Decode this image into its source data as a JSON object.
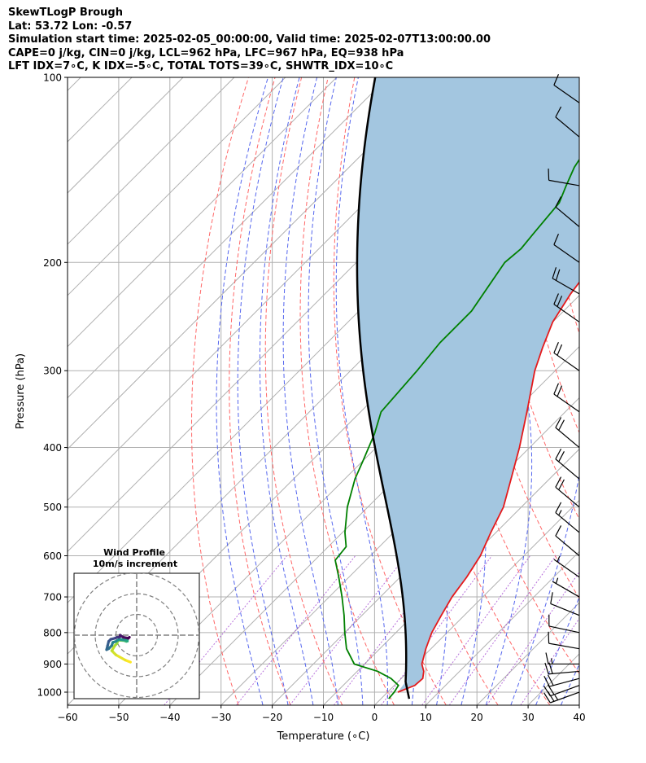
{
  "header": {
    "line1": "SkewTLogP Brough",
    "line2": "Lat: 53.72   Lon: -0.57",
    "line3": "Simulation start time: 2025-02-05_00:00:00, Valid time: 2025-02-07T13:00:00.00",
    "line4": "CAPE=0 j/kg, CIN=0 j/kg, LCL=962 hPa, LFC=967 hPa, EQ=938 hPa",
    "line5": "LFT IDX=7∘C, K IDX=-5∘C, TOTAL TOTS=39∘C, SHWTR_IDX=10∘C"
  },
  "chart_data": {
    "type": "line",
    "xlabel": "Temperature (∘C)",
    "ylabel": "Pressure (hPa)",
    "xlim": [
      -60,
      40
    ],
    "ylim": [
      1050,
      100
    ],
    "y_scale": "log",
    "grid": true,
    "x_ticks": [
      -60,
      -50,
      -40,
      -30,
      -20,
      -10,
      0,
      10,
      20,
      30,
      40
    ],
    "x_tick_labels": [
      "−60",
      "−50",
      "−40",
      "−30",
      "−20",
      "−10",
      "0",
      "10",
      "20",
      "30",
      "40"
    ],
    "y_ticks": [
      100,
      200,
      300,
      400,
      500,
      600,
      700,
      800,
      900,
      1000
    ],
    "y_tick_labels": [
      "100",
      "200",
      "300",
      "400",
      "500",
      "600",
      "700",
      "800",
      "900",
      "1000"
    ],
    "skew_degrees": 45,
    "series": [
      {
        "role": "temperature",
        "color": "#e41a1c",
        "points": [
          [
            1000,
            2.0
          ],
          [
            975,
            4.0
          ],
          [
            950,
            4.2
          ],
          [
            925,
            3.0
          ],
          [
            900,
            1.2
          ],
          [
            850,
            -1.0
          ],
          [
            800,
            -3.0
          ],
          [
            750,
            -4.5
          ],
          [
            700,
            -6.0
          ],
          [
            650,
            -7.0
          ],
          [
            600,
            -8.5
          ],
          [
            550,
            -11.0
          ],
          [
            500,
            -13.5
          ],
          [
            450,
            -17.5
          ],
          [
            400,
            -22.0
          ],
          [
            350,
            -27.5
          ],
          [
            300,
            -34.0
          ],
          [
            275,
            -37.0
          ],
          [
            250,
            -40.0
          ],
          [
            225,
            -42.0
          ],
          [
            200,
            -43.5
          ],
          [
            190,
            -43.8
          ],
          [
            175,
            -43.5
          ],
          [
            160,
            -45.0
          ],
          [
            150,
            -45.5
          ],
          [
            140,
            -46.0
          ],
          [
            125,
            -46.5
          ],
          [
            110,
            -46.0
          ],
          [
            100,
            -47.0
          ]
        ]
      },
      {
        "role": "dewpoint",
        "color": "#008000",
        "points": [
          [
            1025,
            1.5
          ],
          [
            1000,
            1.3
          ],
          [
            975,
            0.8
          ],
          [
            950,
            -2.0
          ],
          [
            925,
            -6.0
          ],
          [
            900,
            -12.0
          ],
          [
            850,
            -16.5
          ],
          [
            800,
            -20.0
          ],
          [
            750,
            -23.5
          ],
          [
            700,
            -27.5
          ],
          [
            650,
            -32.0
          ],
          [
            610,
            -36.0
          ],
          [
            580,
            -36.5
          ],
          [
            550,
            -39.5
          ],
          [
            500,
            -44.0
          ],
          [
            450,
            -48.0
          ],
          [
            420,
            -50.0
          ],
          [
            380,
            -53.0
          ],
          [
            350,
            -56.0
          ],
          [
            300,
            -57.0
          ],
          [
            270,
            -58.0
          ],
          [
            240,
            -58.0
          ],
          [
            200,
            -61.0
          ],
          [
            190,
            -60.5
          ],
          [
            180,
            -61.0
          ],
          [
            160,
            -62.0
          ],
          [
            150,
            -64.0
          ],
          [
            140,
            -66.0
          ],
          [
            125,
            -68.0
          ],
          [
            110,
            -70.0
          ],
          [
            100,
            -72.0
          ]
        ]
      },
      {
        "role": "parcel",
        "color": "#000000",
        "surface": {
          "pressure": 1025,
          "temperature": 5.5
        },
        "lcl": {
          "pressure": 962,
          "temperature": 1.5
        }
      }
    ],
    "shading": {
      "between": [
        "temperature",
        "parcel"
      ],
      "color": "#a3c6e0"
    },
    "background_lines": {
      "dry_adiabats_color": "#ff6666",
      "moist_adiabats_color": "#5566ee",
      "mixing_ratio_color": "#9933cc",
      "isotherm_color": "#b0b0b0",
      "grid_color": "#b0b0b0"
    },
    "wind_barbs": {
      "color": "#000000",
      "units": "m/s",
      "levels": [
        {
          "pressure": 1000,
          "speed": 25,
          "dir": 250
        },
        {
          "pressure": 975,
          "speed": 22,
          "dir": 250
        },
        {
          "pressure": 950,
          "speed": 22,
          "dir": 255
        },
        {
          "pressure": 925,
          "speed": 20,
          "dir": 265
        },
        {
          "pressure": 900,
          "speed": 15,
          "dir": 270
        },
        {
          "pressure": 850,
          "speed": 12,
          "dir": 280
        },
        {
          "pressure": 800,
          "speed": 10,
          "dir": 282
        },
        {
          "pressure": 750,
          "speed": 8,
          "dir": 292
        },
        {
          "pressure": 700,
          "speed": 7,
          "dir": 300
        },
        {
          "pressure": 650,
          "speed": 7,
          "dir": 305
        },
        {
          "pressure": 600,
          "speed": 12,
          "dir": 310
        },
        {
          "pressure": 550,
          "speed": 15,
          "dir": 310
        },
        {
          "pressure": 500,
          "speed": 20,
          "dir": 310
        },
        {
          "pressure": 450,
          "speed": 20,
          "dir": 310
        },
        {
          "pressure": 400,
          "speed": 20,
          "dir": 310
        },
        {
          "pressure": 350,
          "speed": 20,
          "dir": 305
        },
        {
          "pressure": 300,
          "speed": 20,
          "dir": 305
        },
        {
          "pressure": 250,
          "speed": 20,
          "dir": 305
        },
        {
          "pressure": 225,
          "speed": 20,
          "dir": 300
        },
        {
          "pressure": 200,
          "speed": 12,
          "dir": 305
        },
        {
          "pressure": 175,
          "speed": 10,
          "dir": 310
        },
        {
          "pressure": 150,
          "speed": 10,
          "dir": 280
        },
        {
          "pressure": 125,
          "speed": 10,
          "dir": 310
        },
        {
          "pressure": 110,
          "speed": 10,
          "dir": 305
        }
      ]
    },
    "hodograph": {
      "title": "Wind Profile",
      "subtitle": "10m/s increment",
      "ring_increment": 10,
      "rings": 3,
      "colormap": "viridis",
      "points": [
        [
          -3.0,
          -13.0
        ],
        [
          -5.5,
          -12.0
        ],
        [
          -10.0,
          -9.5
        ],
        [
          -12.0,
          -7.5
        ],
        [
          -10.5,
          -5.0
        ],
        [
          -9.5,
          -4.0
        ],
        [
          -9.0,
          -2.5
        ],
        [
          -7.5,
          -2.5
        ],
        [
          -6.0,
          -2.6
        ],
        [
          -5.5,
          -2.8
        ],
        [
          -5.0,
          -3.0
        ],
        [
          -4.5,
          -2.9
        ],
        [
          -4.5,
          -2.5
        ],
        [
          -5.5,
          -2.3
        ],
        [
          -6.5,
          -2.3
        ],
        [
          -8.5,
          -2.0
        ],
        [
          -10.0,
          -3.0
        ],
        [
          -11.5,
          -3.5
        ],
        [
          -12.0,
          -5.0
        ],
        [
          -13.5,
          -6.5
        ],
        [
          -14.5,
          -7.0
        ],
        [
          -14.0,
          -5.0
        ],
        [
          -13.5,
          -3.0
        ],
        [
          -12.5,
          -2.0
        ],
        [
          -10.5,
          -1.5
        ],
        [
          -9.5,
          -1.0
        ],
        [
          -8.5,
          -1.0
        ],
        [
          -7.5,
          -0.5
        ],
        [
          -8.0,
          0.0
        ],
        [
          -6.5,
          -1.0
        ],
        [
          -4.0,
          -1.5
        ],
        [
          -3.5,
          -1.0
        ]
      ]
    }
  }
}
